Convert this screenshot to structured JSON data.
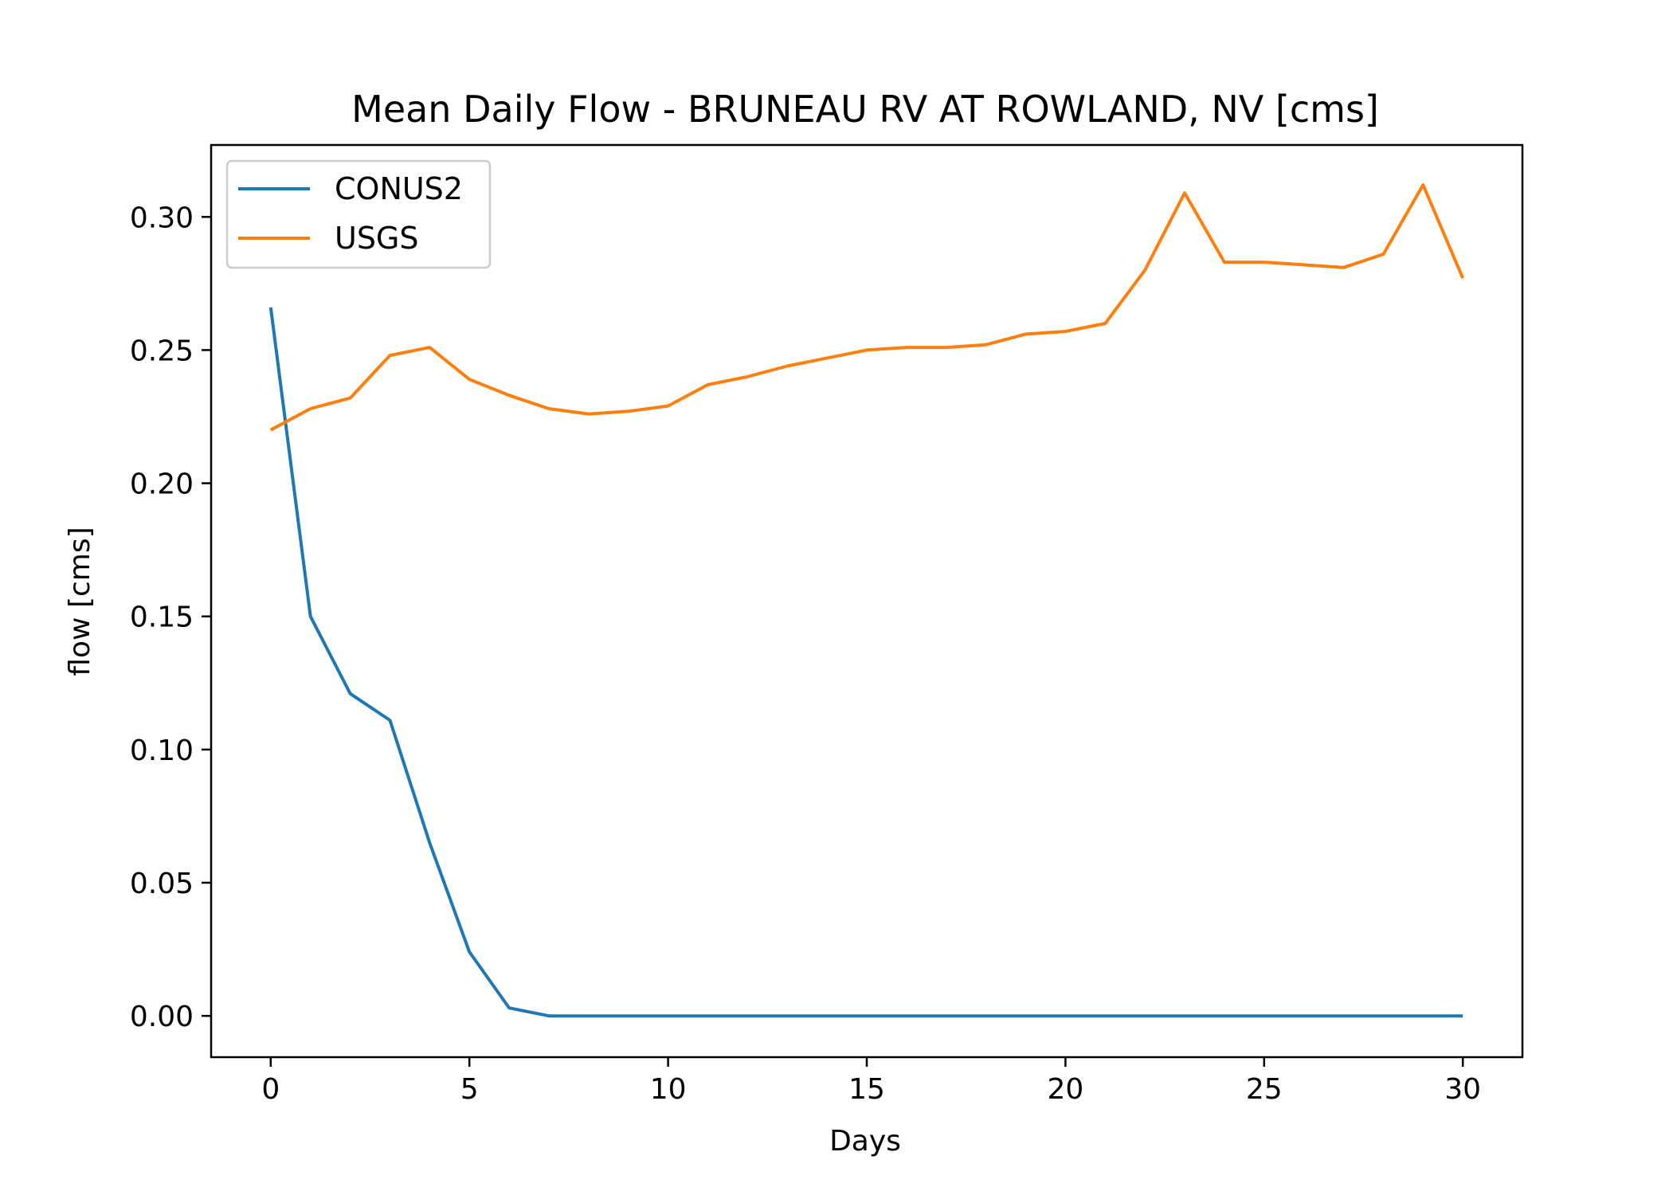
{
  "chart_data": {
    "type": "line",
    "title": "Mean Daily Flow - BRUNEAU RV AT ROWLAND, NV [cms]",
    "xlabel": "Days",
    "ylabel": "flow [cms]",
    "xlim": [
      -1.5,
      31.5
    ],
    "ylim": [
      -0.0155,
      0.327
    ],
    "xticks": [
      0,
      5,
      10,
      15,
      20,
      25,
      30
    ],
    "xtick_labels": [
      "0",
      "5",
      "10",
      "15",
      "20",
      "25",
      "30"
    ],
    "yticks": [
      0.0,
      0.05,
      0.1,
      0.15,
      0.2,
      0.25,
      0.3
    ],
    "ytick_labels": [
      "0.00",
      "0.05",
      "0.10",
      "0.15",
      "0.20",
      "0.25",
      "0.30"
    ],
    "grid": false,
    "legend_position": "top-left",
    "x": [
      0,
      1,
      2,
      3,
      4,
      5,
      6,
      7,
      8,
      9,
      10,
      11,
      12,
      13,
      14,
      15,
      16,
      17,
      18,
      19,
      20,
      21,
      22,
      23,
      24,
      25,
      26,
      27,
      28,
      29,
      30
    ],
    "series": [
      {
        "name": "CONUS2",
        "color": "#1f77b4",
        "values": [
          0.266,
          0.15,
          0.121,
          0.111,
          0.065,
          0.024,
          0.003,
          0.0,
          0.0,
          0.0,
          0.0,
          0.0,
          0.0,
          0.0,
          0.0,
          0.0,
          0.0,
          0.0,
          0.0,
          0.0,
          0.0,
          0.0,
          0.0,
          0.0,
          0.0,
          0.0,
          0.0,
          0.0,
          0.0,
          0.0,
          0.0
        ]
      },
      {
        "name": "USGS",
        "color": "#ff7f0e",
        "values": [
          0.22,
          0.228,
          0.232,
          0.248,
          0.251,
          0.239,
          0.233,
          0.228,
          0.226,
          0.227,
          0.229,
          0.237,
          0.24,
          0.244,
          0.247,
          0.25,
          0.251,
          0.251,
          0.252,
          0.256,
          0.257,
          0.26,
          0.28,
          0.309,
          0.283,
          0.283,
          0.282,
          0.281,
          0.286,
          0.312,
          0.277
        ]
      }
    ]
  }
}
